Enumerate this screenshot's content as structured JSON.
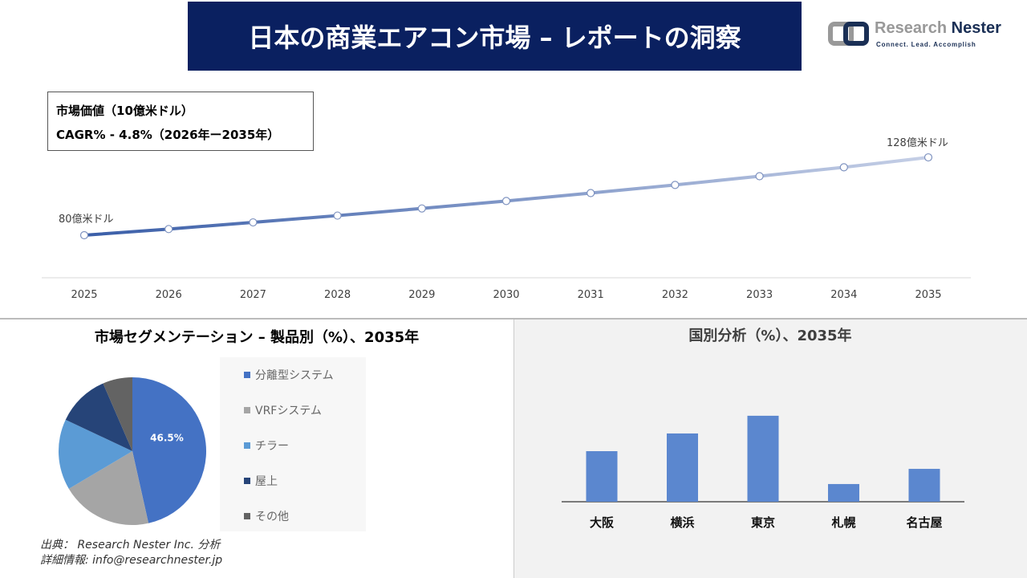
{
  "header": {
    "title": "日本の商業エアコン市場 – レポートの洞察",
    "logo_name_1": "Research",
    "logo_name_2": "Nester",
    "logo_tagline": "Connect. Lead. Accomplish"
  },
  "infobox": {
    "line1": "市場価値（10億米ドル）",
    "line2": "CAGR% - 4.8%（2026年ー2035年）"
  },
  "pie_title": "市場セグメンテーション – 製品別（%）、2035年",
  "bar_title": "国別分析（%）、2035年",
  "source": {
    "line1": "出典： Research Nester Inc. 分析",
    "line2": "詳細情報: info@researchnester.jp"
  },
  "chart_data": [
    {
      "type": "line",
      "x": [
        "2025",
        "2026",
        "2027",
        "2028",
        "2029",
        "2030",
        "2031",
        "2032",
        "2033",
        "2034",
        "2035"
      ],
      "values": [
        80,
        83.8,
        87.9,
        92.1,
        96.5,
        101.1,
        106.0,
        111.0,
        116.4,
        121.9,
        128
      ],
      "data_labels": {
        "first": "80億米ドル",
        "last": "128億米ドル"
      },
      "colors": [
        "#3a5ea8",
        "#c5cfe6"
      ],
      "grid": false
    },
    {
      "type": "pie",
      "categories": [
        "分離型システム",
        "VRFシステム",
        "チラー",
        "屋上",
        "その他"
      ],
      "values": [
        46.5,
        20,
        15.5,
        11.5,
        6.5
      ],
      "data_labels": [
        "46.5%",
        "",
        "",
        "",
        ""
      ],
      "colors": [
        "#4472c4",
        "#a5a5a5",
        "#5b9bd5",
        "#264478",
        "#636363"
      ],
      "legend": "right"
    },
    {
      "type": "bar",
      "categories": [
        "大阪",
        "横浜",
        "東京",
        "札幌",
        "名古屋"
      ],
      "values": [
        20,
        27,
        34,
        7,
        13
      ],
      "color": "#5b87cf"
    }
  ]
}
